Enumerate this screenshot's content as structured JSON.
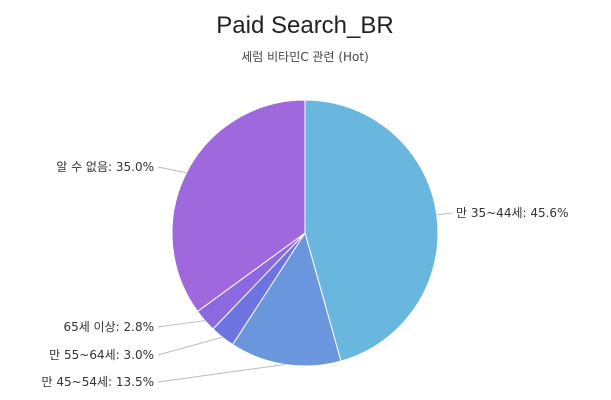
{
  "chart_data": {
    "type": "pie",
    "title": "Paid Search_BR",
    "subtitle": "세럼 비타민C 관련 (Hot)",
    "slices": [
      {
        "label": "만 35~44세: 45.6%",
        "value": 45.6,
        "color": "#69b7de"
      },
      {
        "label": "만 45~54세: 13.5%",
        "value": 13.5,
        "color": "#6a96dd"
      },
      {
        "label": "만 55~64세: 3.0%",
        "value": 3.0,
        "color": "#6d73df"
      },
      {
        "label": "65세 이상: 2.8%",
        "value": 2.8,
        "color": "#8b69e0"
      },
      {
        "label": "알 수 없음: 35.0%",
        "value": 35.0,
        "color": "#a068dd"
      }
    ],
    "start_angle_deg": 0,
    "direction": "clockwise",
    "legend": "none"
  }
}
